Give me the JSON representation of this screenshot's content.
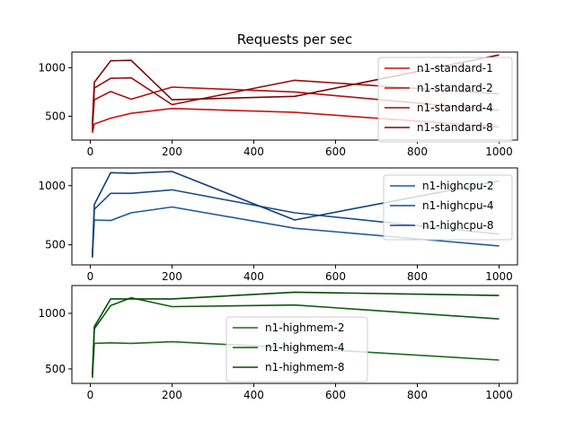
{
  "chart_data": [
    {
      "type": "line",
      "title": "Requests per sec",
      "xlabel": "",
      "ylabel": "",
      "xlim": [
        -45,
        1045
      ],
      "ylim": [
        255,
        1160
      ],
      "xticks": [
        0,
        200,
        400,
        600,
        800,
        1000
      ],
      "yticks": [
        500,
        1000
      ],
      "legend_position": "top-right",
      "series": [
        {
          "name": "n1-standard-1",
          "color": "#cc1111",
          "x": [
            5,
            10,
            50,
            100,
            200,
            500,
            1000
          ],
          "y": [
            330,
            420,
            480,
            530,
            580,
            540,
            390
          ]
        },
        {
          "name": "n1-standard-2",
          "color": "#b01010",
          "x": [
            5,
            10,
            50,
            100,
            200,
            500,
            1000
          ],
          "y": [
            400,
            670,
            755,
            675,
            800,
            750,
            560
          ]
        },
        {
          "name": "n1-standard-4",
          "color": "#980b0b",
          "x": [
            5,
            10,
            50,
            100,
            200,
            500,
            1000
          ],
          "y": [
            350,
            790,
            890,
            895,
            620,
            870,
            730
          ]
        },
        {
          "name": "n1-standard-8",
          "color": "#7a0505",
          "x": [
            5,
            10,
            50,
            100,
            200,
            500,
            1000
          ],
          "y": [
            420,
            850,
            1070,
            1075,
            670,
            705,
            1130
          ]
        }
      ]
    },
    {
      "type": "line",
      "title": "",
      "xlabel": "",
      "ylabel": "",
      "xlim": [
        -45,
        1045
      ],
      "ylim": [
        330,
        1150
      ],
      "xticks": [
        0,
        200,
        400,
        600,
        800,
        1000
      ],
      "yticks": [
        500,
        1000
      ],
      "legend_position": "top-right",
      "series": [
        {
          "name": "n1-highcpu-2",
          "color": "#1f5a99",
          "x": [
            5,
            10,
            50,
            100,
            200,
            500,
            1000
          ],
          "y": [
            400,
            710,
            705,
            770,
            820,
            640,
            490
          ]
        },
        {
          "name": "n1-highcpu-4",
          "color": "#184d87",
          "x": [
            5,
            10,
            50,
            100,
            200,
            500,
            1000
          ],
          "y": [
            390,
            800,
            935,
            935,
            965,
            770,
            590
          ]
        },
        {
          "name": "n1-highcpu-8",
          "color": "#123f73",
          "x": [
            5,
            10,
            50,
            100,
            200,
            500,
            1000
          ],
          "y": [
            410,
            840,
            1110,
            1105,
            1120,
            710,
            1040
          ]
        }
      ]
    },
    {
      "type": "line",
      "title": "",
      "xlabel": "",
      "ylabel": "",
      "xlim": [
        -45,
        1045
      ],
      "ylim": [
        370,
        1250
      ],
      "xticks": [
        0,
        200,
        400,
        600,
        800,
        1000
      ],
      "yticks": [
        500,
        1000
      ],
      "legend_position": "center",
      "series": [
        {
          "name": "n1-highmem-2",
          "color": "#1e6b1e",
          "x": [
            5,
            10,
            50,
            100,
            200,
            500,
            1000
          ],
          "y": [
            430,
            730,
            735,
            730,
            745,
            690,
            580
          ]
        },
        {
          "name": "n1-highmem-4",
          "color": "#115a11",
          "x": [
            5,
            10,
            50,
            100,
            200,
            500,
            1000
          ],
          "y": [
            420,
            860,
            1070,
            1140,
            1060,
            1075,
            950
          ]
        },
        {
          "name": "n1-highmem-8",
          "color": "#064a06",
          "x": [
            5,
            10,
            50,
            100,
            200,
            500,
            1000
          ],
          "y": [
            450,
            880,
            1130,
            1130,
            1130,
            1190,
            1160
          ]
        }
      ]
    }
  ]
}
